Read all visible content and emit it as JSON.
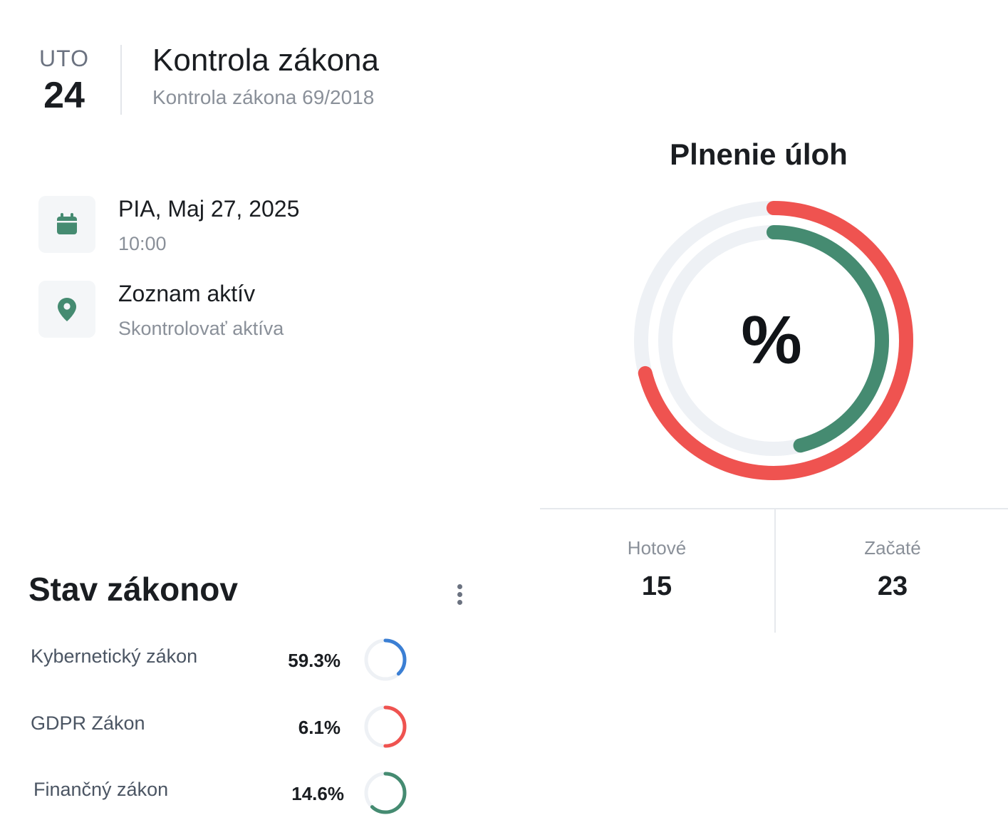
{
  "event": {
    "day_name": "UTO",
    "day_number": "24",
    "title": "Kontrola zákona",
    "subtitle": "Kontrola zákona 69/2018"
  },
  "schedule": {
    "date": "PIA, Maj 27, 2025",
    "time": "10:00",
    "icon": "calendar-icon"
  },
  "location": {
    "name": "Zoznam aktív",
    "description": "Skontrolovať aktíva",
    "icon": "map-pin-icon"
  },
  "task_progress": {
    "title": "Plnenie úloh",
    "center_label": "%",
    "outer_ring": {
      "color": "#ef5350",
      "fraction": 0.71
    },
    "inner_ring": {
      "color": "#458b71",
      "fraction": 0.46
    },
    "track_color": "#eef1f5",
    "stats": [
      {
        "label": "Hotové",
        "value": "15"
      },
      {
        "label": "Začaté",
        "value": "23"
      }
    ]
  },
  "laws": {
    "title": "Stav zákonov",
    "menu_icon": "more-vertical-icon",
    "items": [
      {
        "name": "Kybernetický zákon",
        "percent_label": "59.3%",
        "color": "#3b7fd4",
        "ring_fraction": 0.38
      },
      {
        "name": "GDPR Zákon",
        "percent_label": "6.1%",
        "color": "#ef5350",
        "ring_fraction": 0.5
      },
      {
        "name": "Finančný zákon",
        "percent_label": "14.6%",
        "color": "#458b71",
        "ring_fraction": 0.62
      }
    ]
  }
}
